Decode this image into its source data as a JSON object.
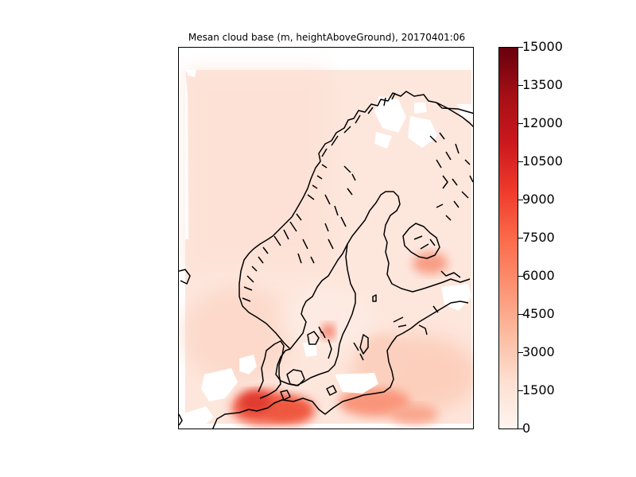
{
  "map": {
    "title": "Mesan cloud base (m, heightAboveGround), 20170401:06",
    "colormap": "Reds",
    "colors": {
      "low": "#fff5f0",
      "mid": "#fb6a4a",
      "high": "#67000d",
      "coastline": "#000000",
      "nodata": "#ffffff"
    }
  },
  "colorbar": {
    "min": 0,
    "max": 15000,
    "ticks": [
      "15000",
      "13500",
      "12000",
      "10500",
      "9000",
      "7500",
      "6000",
      "4500",
      "3000",
      "1500",
      "0"
    ]
  }
}
